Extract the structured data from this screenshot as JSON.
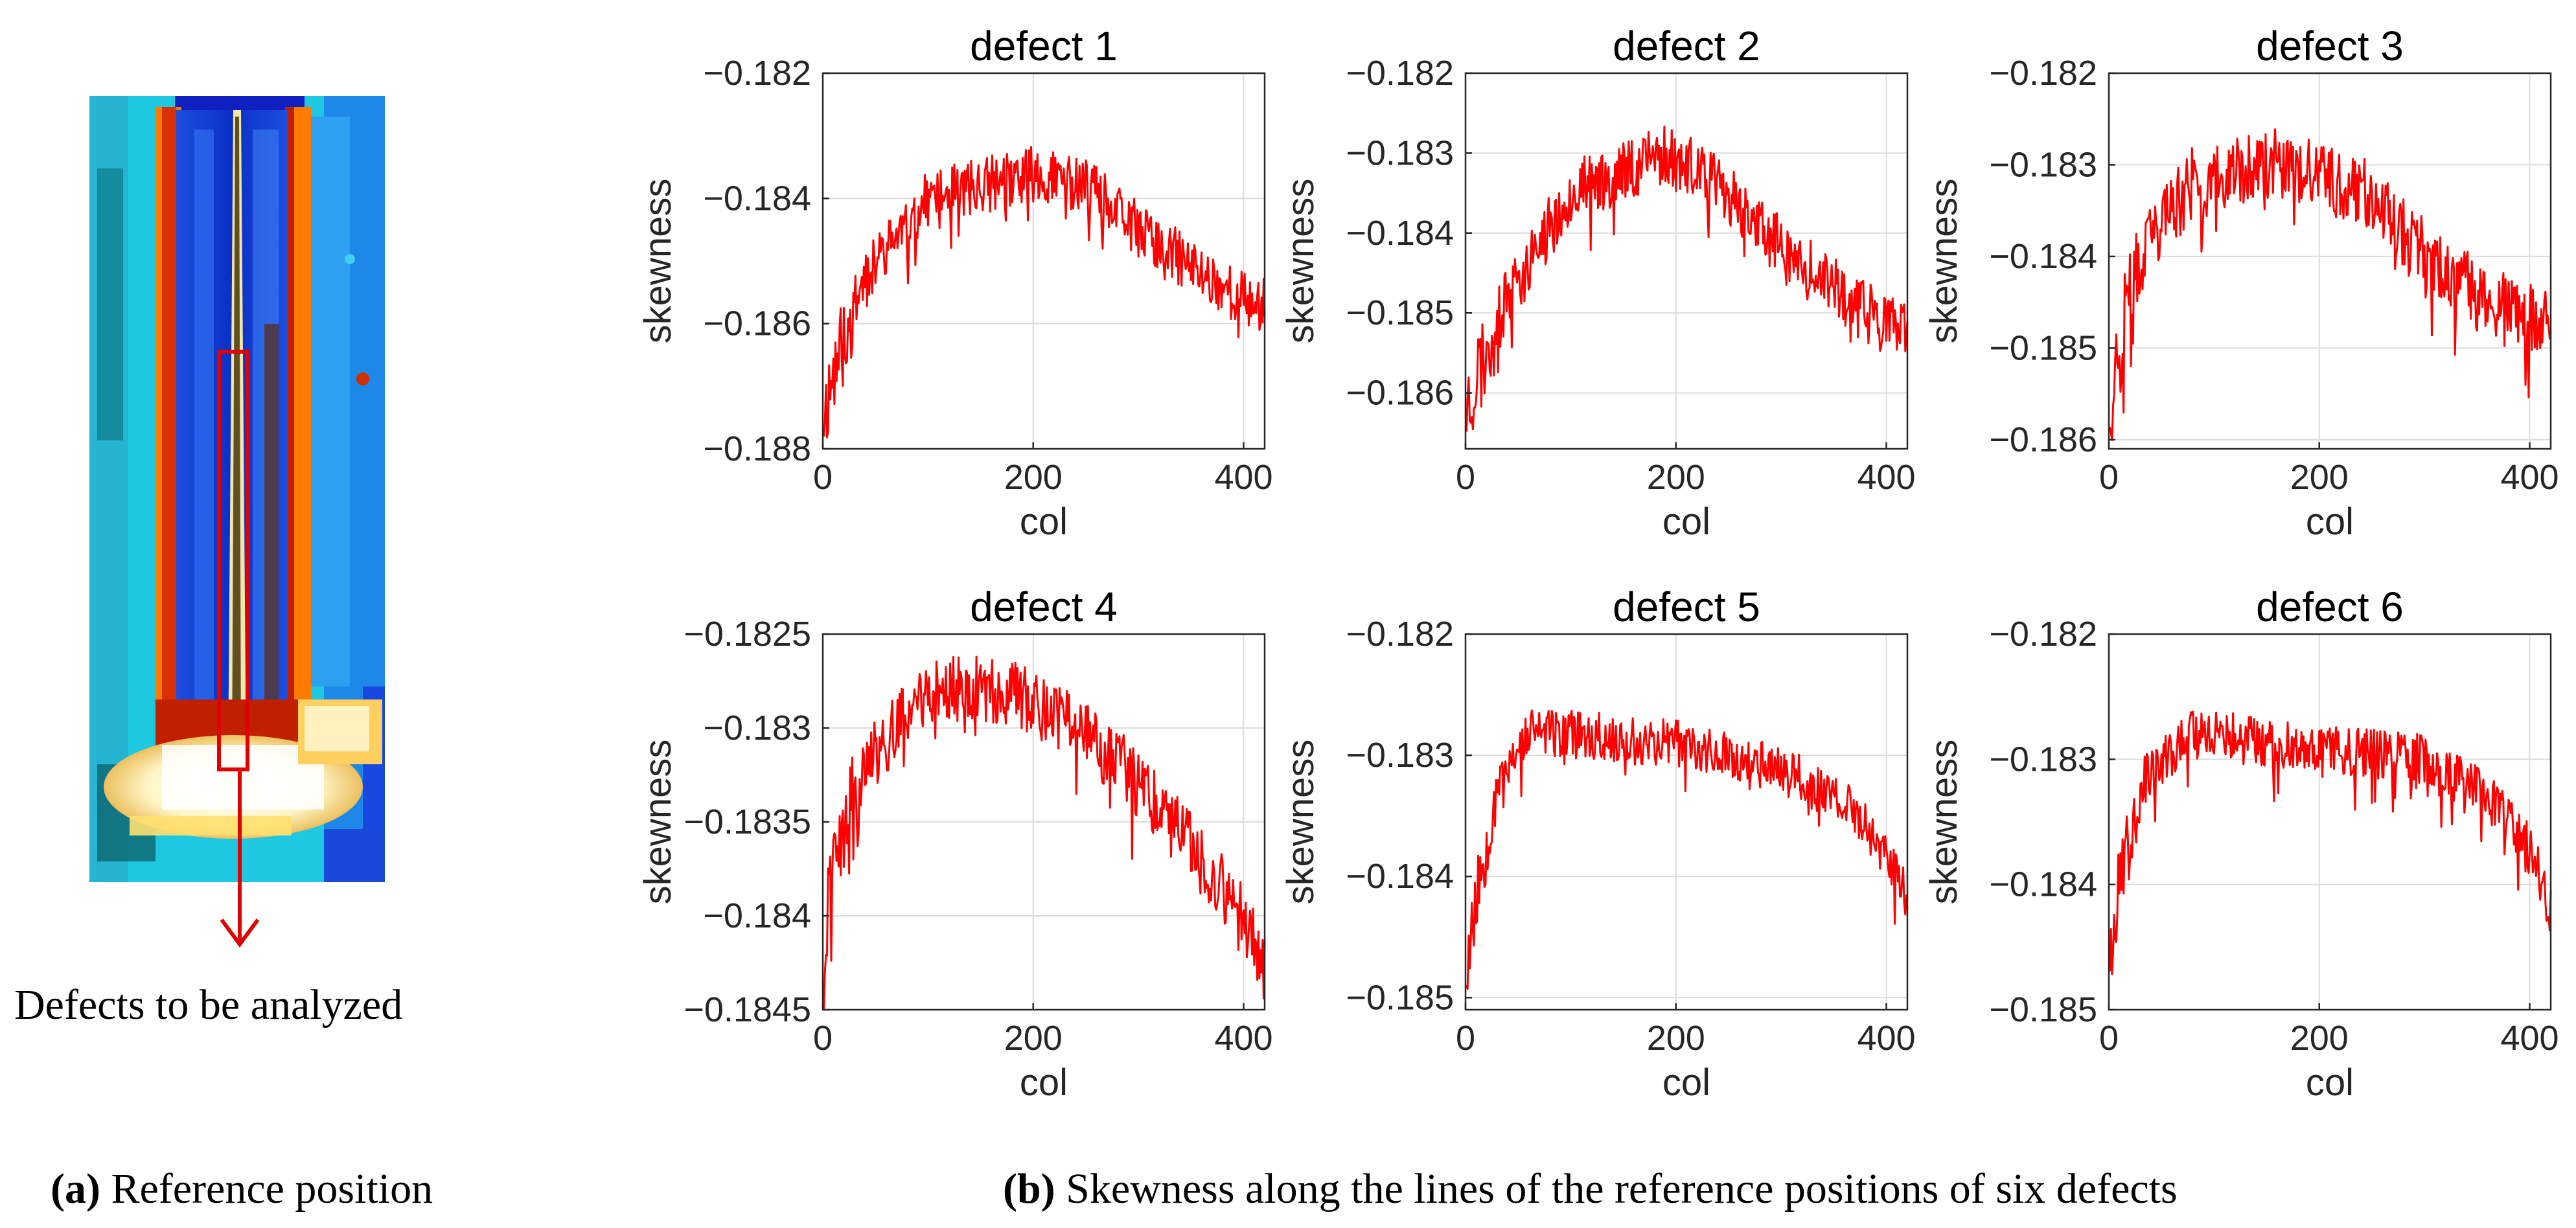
{
  "colors": {
    "series": "#ff0000",
    "marker": "#e00000"
  },
  "left_panel": {
    "annotation": "Defects to be analyzed",
    "caption_label": "(a)",
    "caption_text": " Reference position"
  },
  "right_caption": {
    "label": "(b)",
    "text": " Skewness along the lines of the reference positions of six defects"
  },
  "chart_data": [
    {
      "type": "line",
      "title": "defect 1",
      "xlabel": "col",
      "ylabel": "skewness",
      "xlim": [
        0,
        420
      ],
      "ylim": [
        -0.188,
        -0.182
      ],
      "xticks": [
        0,
        200,
        400
      ],
      "xtick_labels": [
        "0",
        "200",
        "400"
      ],
      "yticks": [
        -0.182,
        -0.184,
        -0.186,
        -0.188
      ],
      "ytick_labels": [
        "−0.182",
        "−0.184",
        "−0.186",
        "−0.188"
      ],
      "profile": {
        "x": [
          0,
          10,
          40,
          100,
          200,
          250,
          300,
          360,
          400,
          420
        ],
        "y": [
          -0.1875,
          -0.1868,
          -0.1852,
          -0.184,
          -0.1836,
          -0.1838,
          -0.1845,
          -0.1852,
          -0.1856,
          -0.1857
        ]
      },
      "noise": 0.00045,
      "seed": 11
    },
    {
      "type": "line",
      "title": "defect 2",
      "xlabel": "col",
      "ylabel": "skewness",
      "xlim": [
        0,
        420
      ],
      "ylim": [
        -0.1867,
        -0.182
      ],
      "xticks": [
        0,
        200,
        400
      ],
      "xtick_labels": [
        "0",
        "200",
        "400"
      ],
      "yticks": [
        -0.182,
        -0.183,
        -0.184,
        -0.185,
        -0.186
      ],
      "ytick_labels": [
        "−0.182",
        "−0.183",
        "−0.184",
        "−0.185",
        "−0.186"
      ],
      "profile": {
        "x": [
          0,
          10,
          40,
          100,
          190,
          250,
          300,
          360,
          420
        ],
        "y": [
          -0.1862,
          -0.1858,
          -0.1848,
          -0.1835,
          -0.183,
          -0.1835,
          -0.1842,
          -0.1848,
          -0.1853
        ]
      },
      "noise": 0.0004,
      "seed": 23
    },
    {
      "type": "line",
      "title": "defect 3",
      "xlabel": "col",
      "ylabel": "skewness",
      "xlim": [
        0,
        420
      ],
      "ylim": [
        -0.1861,
        -0.182
      ],
      "xticks": [
        0,
        200,
        400
      ],
      "xtick_labels": [
        "0",
        "200",
        "400"
      ],
      "yticks": [
        -0.182,
        -0.183,
        -0.184,
        -0.185,
        -0.186
      ],
      "ytick_labels": [
        "−0.182",
        "−0.183",
        "−0.184",
        "−0.185",
        "−0.186"
      ],
      "profile": {
        "x": [
          0,
          10,
          40,
          80,
          160,
          250,
          300,
          360,
          420
        ],
        "y": [
          -0.1856,
          -0.185,
          -0.1838,
          -0.1832,
          -0.183,
          -0.1833,
          -0.184,
          -0.1845,
          -0.1848
        ]
      },
      "noise": 0.0004,
      "seed": 37
    },
    {
      "type": "line",
      "title": "defect 4",
      "xlabel": "col",
      "ylabel": "skewness",
      "xlim": [
        0,
        420
      ],
      "ylim": [
        -0.1845,
        -0.1825
      ],
      "xticks": [
        0,
        200,
        400
      ],
      "xtick_labels": [
        "0",
        "200",
        "400"
      ],
      "yticks": [
        -0.1825,
        -0.183,
        -0.1835,
        -0.184,
        -0.1845
      ],
      "ytick_labels": [
        "−0.1825",
        "−0.183",
        "−0.1835",
        "−0.184",
        "−0.1845"
      ],
      "profile": {
        "x": [
          0,
          10,
          40,
          100,
          170,
          250,
          300,
          360,
          400,
          420
        ],
        "y": [
          -0.1842,
          -0.1838,
          -0.1832,
          -0.1828,
          -0.1828,
          -0.183,
          -0.1833,
          -0.1837,
          -0.184,
          -0.1843
        ]
      },
      "noise": 0.00018,
      "seed": 41
    },
    {
      "type": "line",
      "title": "defect 5",
      "xlabel": "col",
      "ylabel": "skewness",
      "xlim": [
        0,
        420
      ],
      "ylim": [
        -0.1851,
        -0.182
      ],
      "xticks": [
        0,
        200,
        400
      ],
      "xtick_labels": [
        "0",
        "200",
        "400"
      ],
      "yticks": [
        -0.182,
        -0.183,
        -0.184,
        -0.185
      ],
      "ytick_labels": [
        "−0.182",
        "−0.183",
        "−0.184",
        "−0.185"
      ],
      "profile": {
        "x": [
          0,
          10,
          30,
          60,
          200,
          300,
          360,
          400,
          420
        ],
        "y": [
          -0.1848,
          -0.1842,
          -0.1832,
          -0.1828,
          -0.1829,
          -0.1831,
          -0.1834,
          -0.1838,
          -0.1842
        ]
      },
      "noise": 0.0002,
      "seed": 53
    },
    {
      "type": "line",
      "title": "defect 6",
      "xlabel": "col",
      "ylabel": "skewness",
      "xlim": [
        0,
        420
      ],
      "ylim": [
        -0.185,
        -0.182
      ],
      "xticks": [
        0,
        200,
        400
      ],
      "xtick_labels": [
        "0",
        "200",
        "400"
      ],
      "yticks": [
        -0.182,
        -0.183,
        -0.184,
        -0.185
      ],
      "ytick_labels": [
        "−0.182",
        "−0.183",
        "−0.184",
        "−0.185"
      ],
      "profile": {
        "x": [
          0,
          10,
          30,
          80,
          200,
          300,
          360,
          400,
          420
        ],
        "y": [
          -0.1846,
          -0.184,
          -0.1832,
          -0.1828,
          -0.1829,
          -0.183,
          -0.1833,
          -0.1837,
          -0.1842
        ]
      },
      "noise": 0.0002,
      "seed": 67
    }
  ]
}
